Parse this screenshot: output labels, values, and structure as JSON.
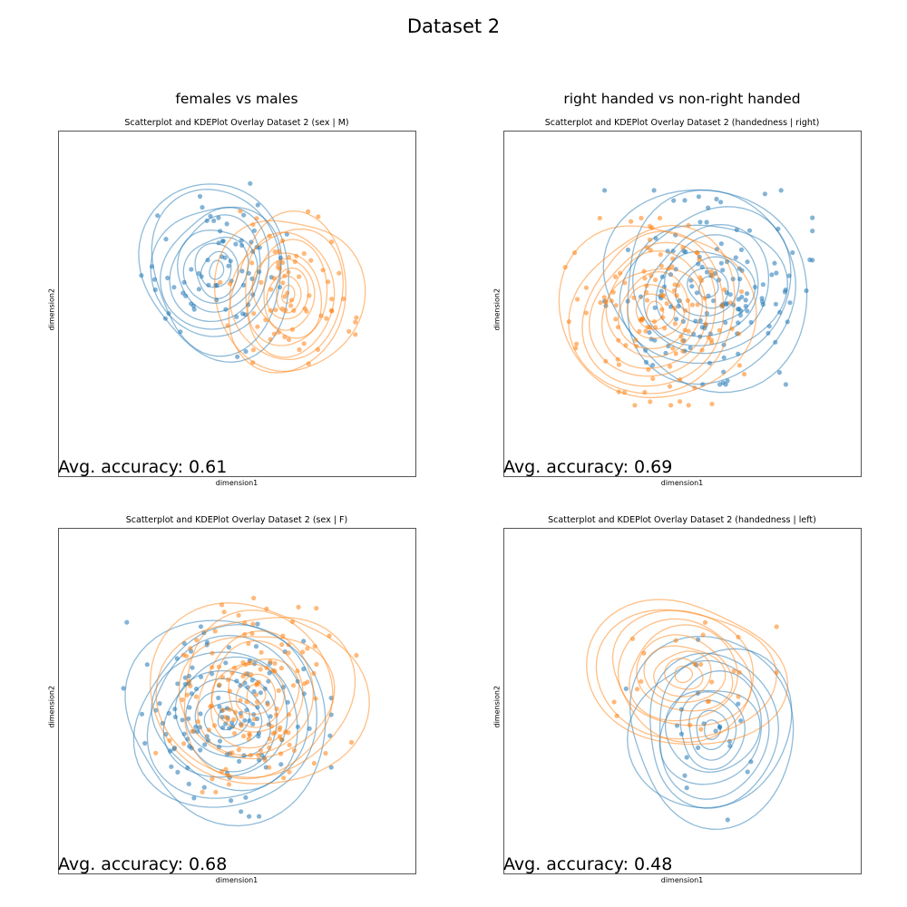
{
  "figure": {
    "title": "Dataset 2",
    "col_titles": [
      "females vs males",
      "right handed vs non-right handed"
    ],
    "colors": {
      "blue": "#1f77b4",
      "orange": "#ff7f0e"
    }
  },
  "chart_data": [
    {
      "type": "scatter",
      "title": "Scatterplot and KDEPlot Overlay Dataset 2 (sex | M)",
      "xlabel": "dimension1",
      "ylabel": "dimension2",
      "accuracy_text": "Avg. accuracy: 0.61",
      "overlay": "kde-contours",
      "grid": false,
      "series": [
        {
          "color": "#1f77b4",
          "clusters": [
            {
              "cx": 0.44,
              "cy": 0.4,
              "rx": 0.21,
              "ry": 0.25,
              "n": 70
            }
          ]
        },
        {
          "color": "#ff7f0e",
          "clusters": [
            {
              "cx": 0.64,
              "cy": 0.47,
              "rx": 0.19,
              "ry": 0.24,
              "n": 70
            }
          ]
        }
      ]
    },
    {
      "type": "scatter",
      "title": "Scatterplot and KDEPlot Overlay Dataset 2 (handedness | right)",
      "xlabel": "dimension1",
      "ylabel": "dimension2",
      "accuracy_text": "Avg. accuracy: 0.69",
      "overlay": "kde-contours",
      "grid": false,
      "series": [
        {
          "color": "#1f77b4",
          "clusters": [
            {
              "cx": 0.57,
              "cy": 0.45,
              "rx": 0.29,
              "ry": 0.28,
              "n": 140
            }
          ]
        },
        {
          "color": "#ff7f0e",
          "clusters": [
            {
              "cx": 0.42,
              "cy": 0.52,
              "rx": 0.25,
              "ry": 0.27,
              "n": 120
            }
          ]
        }
      ]
    },
    {
      "type": "scatter",
      "title": "Scatterplot and KDEPlot Overlay Dataset 2 (sex | F)",
      "xlabel": "dimension1",
      "ylabel": "dimension2",
      "accuracy_text": "Avg. accuracy: 0.68",
      "overlay": "kde-contours",
      "grid": false,
      "series": [
        {
          "color": "#1f77b4",
          "clusters": [
            {
              "cx": 0.47,
              "cy": 0.55,
              "rx": 0.29,
              "ry": 0.28,
              "n": 130
            }
          ]
        },
        {
          "color": "#ff7f0e",
          "clusters": [
            {
              "cx": 0.55,
              "cy": 0.48,
              "rx": 0.28,
              "ry": 0.28,
              "n": 130
            }
          ]
        }
      ]
    },
    {
      "type": "scatter",
      "title": "Scatterplot and KDEPlot Overlay Dataset 2 (handedness | left)",
      "xlabel": "dimension1",
      "ylabel": "dimension2",
      "accuracy_text": "Avg. accuracy: 0.48",
      "overlay": "kde-contours",
      "grid": false,
      "series": [
        {
          "color": "#1f77b4",
          "clusters": [
            {
              "cx": 0.58,
              "cy": 0.58,
              "rx": 0.24,
              "ry": 0.26,
              "n": 22
            }
          ]
        },
        {
          "color": "#ff7f0e",
          "clusters": [
            {
              "cx": 0.5,
              "cy": 0.42,
              "rx": 0.26,
              "ry": 0.22,
              "n": 22
            }
          ]
        }
      ]
    }
  ]
}
